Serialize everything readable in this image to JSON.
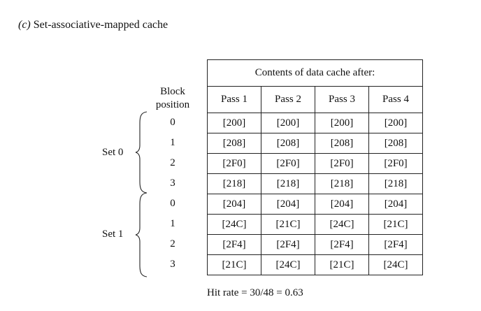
{
  "heading": {
    "label": "(c)",
    "title": "Set-associative-mapped cache"
  },
  "block_label_line1": "Block",
  "block_label_line2": "position",
  "table": {
    "title": "Contents of data cache after:",
    "passes": [
      "Pass 1",
      "Pass 2",
      "Pass 3",
      "Pass 4"
    ]
  },
  "sets": [
    {
      "label": "Set 0",
      "positions": [
        "0",
        "1",
        "2",
        "3"
      ],
      "rows": [
        [
          "[200]",
          "[200]",
          "[200]",
          "[200]"
        ],
        [
          "[208]",
          "[208]",
          "[208]",
          "[208]"
        ],
        [
          "[2F0]",
          "[2F0]",
          "[2F0]",
          "[2F0]"
        ],
        [
          "[218]",
          "[218]",
          "[218]",
          "[218]"
        ]
      ]
    },
    {
      "label": "Set 1",
      "positions": [
        "0",
        "1",
        "2",
        "3"
      ],
      "rows": [
        [
          "[204]",
          "[204]",
          "[204]",
          "[204]"
        ],
        [
          "[24C]",
          "[21C]",
          "[24C]",
          "[21C]"
        ],
        [
          "[2F4]",
          "[2F4]",
          "[2F4]",
          "[2F4]"
        ],
        [
          "[21C]",
          "[24C]",
          "[21C]",
          "[24C]"
        ]
      ]
    }
  ],
  "hit_rate": "Hit rate = 30/48 = 0.63"
}
